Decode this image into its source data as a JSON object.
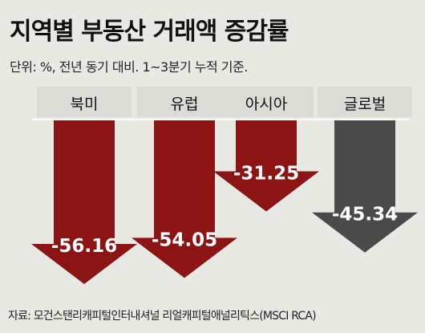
{
  "chart_data": {
    "type": "bar",
    "title": "지역별 부동산 거래액 증감률",
    "subtitle": "단위: %, 전년 동기 대비. 1~3분기 누적 기준.",
    "categories": [
      "북미",
      "유럽",
      "아시아",
      "글로벌"
    ],
    "values": [
      -56.16,
      -54.05,
      -31.25,
      -45.34
    ],
    "value_labels": [
      "-56.16",
      "-54.05",
      "-31.25",
      "-45.34"
    ],
    "ylim": [
      -60,
      0
    ],
    "grid": false,
    "colors": [
      "#8c1414",
      "#8c1414",
      "#8c1414",
      "#4a4a4a"
    ]
  },
  "source": "자료: 모건스탠리캐피털인터내셔널 리얼캐피털애널리틱스(MSCI RCA)"
}
